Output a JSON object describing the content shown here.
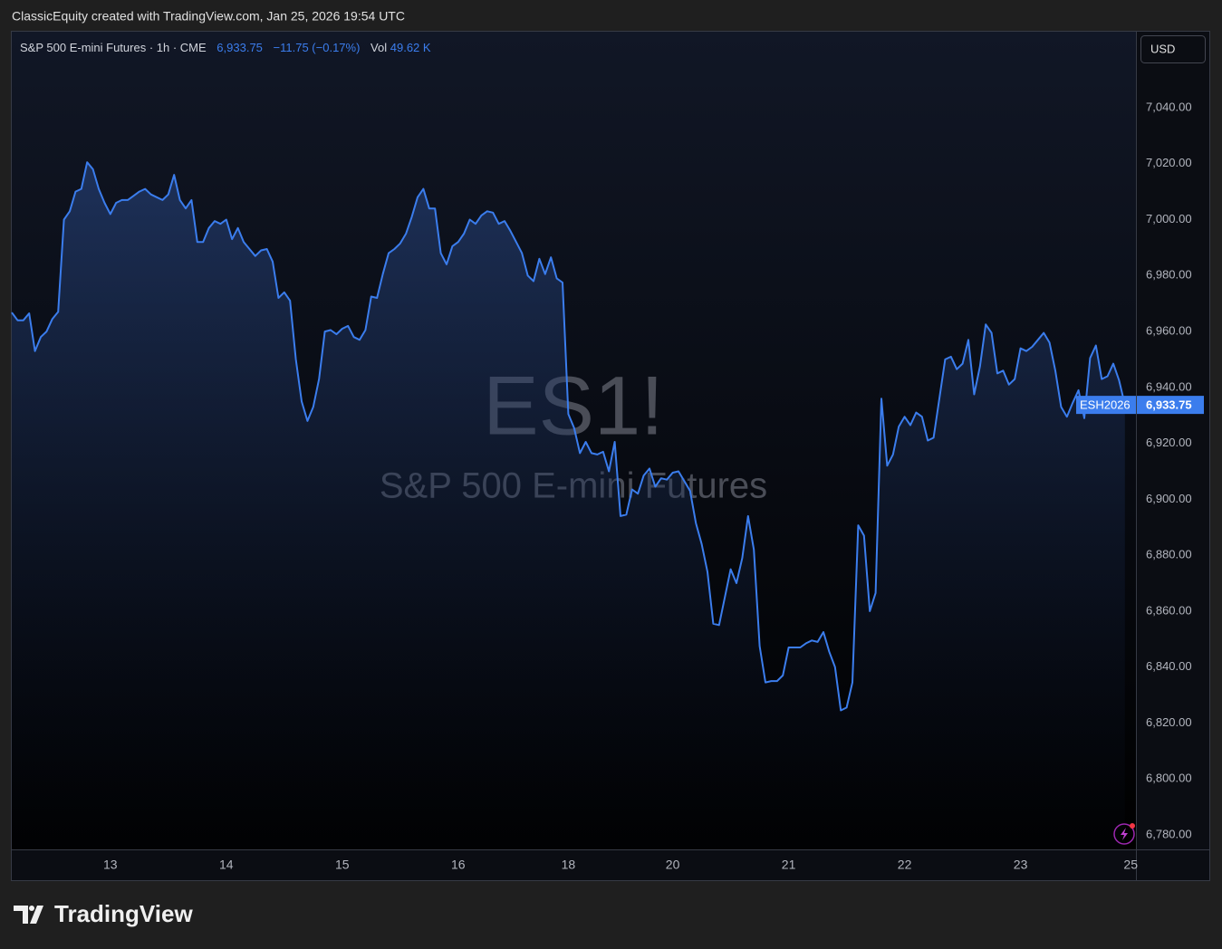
{
  "header": "ClassicEquity created with TradingView.com, Jan 25, 2026 19:54 UTC",
  "logo": "TradingView",
  "chart_data": {
    "type": "line",
    "legend_symbol": "S&P 500 E-mini Futures · 1h · CME",
    "legend_price": "6,933.75",
    "legend_change": "−11.75 (−0.17%)",
    "legend_vol_label": "Vol",
    "legend_vol": "49.62 K",
    "currency": "USD",
    "watermark": "ES1!",
    "watermark_sub": "S&P 500 E-mini Futures",
    "price_tag_symbol": "ESH2026",
    "price_tag_value": "6,933.75",
    "grid": false,
    "color": "#3b7ded",
    "ylim": [
      6774.8,
      7067.2
    ],
    "yticks": [
      {
        "value": 6780,
        "label": "6,780.00"
      },
      {
        "value": 6800,
        "label": "6,800.00"
      },
      {
        "value": 6820,
        "label": "6,820.00"
      },
      {
        "value": 6840,
        "label": "6,840.00"
      },
      {
        "value": 6860,
        "label": "6,860.00"
      },
      {
        "value": 6880,
        "label": "6,880.00"
      },
      {
        "value": 6900,
        "label": "6,900.00"
      },
      {
        "value": 6920,
        "label": "6,920.00"
      },
      {
        "value": 6940,
        "label": "6,940.00"
      },
      {
        "value": 6960,
        "label": "6,960.00"
      },
      {
        "value": 6980,
        "label": "6,980.00"
      },
      {
        "value": 7000,
        "label": "7,000.00"
      },
      {
        "value": 7020,
        "label": "7,020.00"
      },
      {
        "value": 7040,
        "label": "7,040.00"
      }
    ],
    "categories": [
      null,
      null,
      null,
      null,
      null,
      null,
      null,
      null,
      null,
      null,
      null,
      null,
      null,
      null,
      null,
      null,
      null,
      "13",
      null,
      null,
      null,
      null,
      null,
      null,
      null,
      null,
      null,
      null,
      null,
      null,
      null,
      null,
      null,
      null,
      null,
      null,
      null,
      "14",
      null,
      null,
      null,
      null,
      null,
      null,
      null,
      null,
      null,
      null,
      null,
      null,
      null,
      null,
      null,
      null,
      null,
      null,
      null,
      "15",
      null,
      null,
      null,
      null,
      null,
      null,
      null,
      null,
      null,
      null,
      null,
      null,
      null,
      null,
      null,
      null,
      null,
      null,
      null,
      "16",
      null,
      null,
      null,
      null,
      null,
      null,
      null,
      null,
      null,
      null,
      null,
      null,
      null,
      null,
      null,
      null,
      null,
      null,
      "18",
      null,
      null,
      null,
      null,
      null,
      null,
      null,
      null,
      null,
      null,
      null,
      null,
      null,
      null,
      null,
      null,
      null,
      "20",
      null,
      null,
      null,
      null,
      null,
      null,
      null,
      null,
      null,
      null,
      null,
      null,
      null,
      null,
      null,
      null,
      null,
      null,
      null,
      "21",
      null,
      null,
      null,
      null,
      null,
      null,
      null,
      null,
      null,
      null,
      null,
      null,
      null,
      null,
      null,
      null,
      null,
      null,
      null,
      "22",
      null,
      null,
      null,
      null,
      null,
      null,
      null,
      null,
      null,
      null,
      null,
      null,
      null,
      null,
      null,
      null,
      null,
      null,
      null,
      "23",
      null,
      null,
      null,
      null,
      null,
      null,
      null,
      null,
      null,
      null,
      null,
      null,
      null,
      null,
      null,
      null,
      null,
      null,
      "25"
    ],
    "values": [
      6966.8,
      6964,
      6964,
      6966.5,
      6953,
      6958,
      6960,
      6964.5,
      6967,
      7000,
      7003,
      7010,
      7011,
      7020.5,
      7018,
      7011,
      7006,
      7002,
      7006,
      7007,
      7007,
      7008.5,
      7010,
      7011,
      7009,
      7008,
      7007,
      7009,
      7016,
      7007,
      7004,
      7007,
      6992,
      6992,
      6997,
      6999.5,
      6998.5,
      7000,
      6993,
      6997,
      6992,
      6989.5,
      6987,
      6989,
      6989.5,
      6985,
      6972,
      6974,
      6971,
      6950,
      6935,
      6928,
      6933,
      6943,
      6960,
      6960.5,
      6959,
      6961,
      6962,
      6958,
      6957,
      6960.5,
      6972.5,
      6972,
      6980.5,
      6988,
      6989.5,
      6991.5,
      6995,
      7001,
      7008,
      7011,
      7004,
      7004,
      6988,
      6984,
      6990.5,
      6992,
      6995,
      7000,
      6998.5,
      7001.5,
      7003,
      7002.5,
      6998.5,
      6999.5,
      6996,
      6992,
      6988,
      6980,
      6978,
      6986,
      6980.5,
      6986.5,
      6979,
      6977.5,
      6930.5,
      6925.5,
      6916.5,
      6920.5,
      6916.5,
      6916,
      6917,
      6910,
      6920.5,
      6894,
      6894.5,
      6903.5,
      6902,
      6908.5,
      6911,
      6904.5,
      6907.5,
      6907,
      6909.5,
      6910,
      6906.5,
      6903,
      6891.5,
      6884,
      6874,
      6855.5,
      6855,
      6865,
      6875,
      6870,
      6879,
      6894,
      6882,
      6847.5,
      6834.5,
      6835,
      6835,
      6837,
      6847,
      6847,
      6847,
      6848.5,
      6849.5,
      6849,
      6852.5,
      6845.5,
      6840,
      6824.5,
      6825.5,
      6834.5,
      6890.7,
      6887,
      6860,
      6866.5,
      6936,
      6912,
      6916,
      6926,
      6929.5,
      6926.5,
      6931,
      6929.5,
      6921,
      6922,
      6936,
      6950,
      6951,
      6946.5,
      6948.5,
      6957,
      6937.5,
      6947.5,
      6962.5,
      6959.5,
      6945,
      6946,
      6941,
      6943,
      6954,
      6953,
      6954.5,
      6957,
      6959.5,
      6956,
      6946,
      6933,
      6929.5,
      6934.5,
      6939,
      6929,
      6950.5,
      6955,
      6943,
      6944,
      6948.5,
      6942.5,
      6933.75,
      null
    ]
  }
}
